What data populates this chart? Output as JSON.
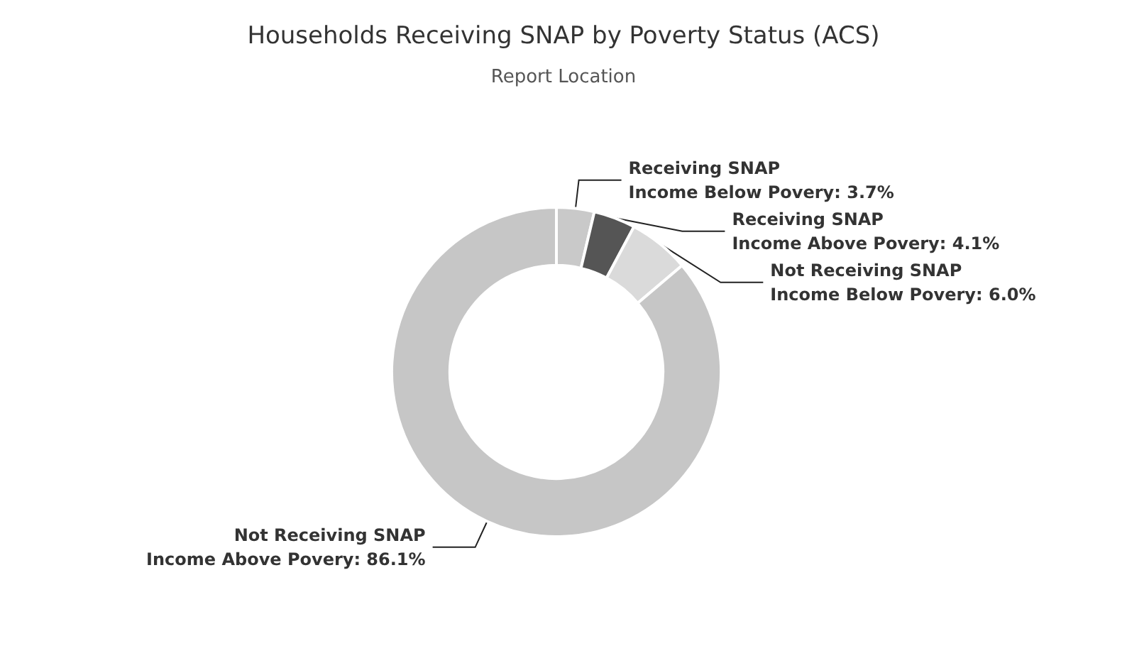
{
  "chart_data": {
    "type": "donut",
    "title": "Households Receiving SNAP by Poverty Status (ACS)",
    "subtitle": "Report Location",
    "categories": [
      "Receiving SNAP\nIncome Below Povery",
      "Receiving SNAP\nIncome Above Povery",
      "Not Receiving SNAP\nIncome Below Povery",
      "Not Receiving SNAP\nIncome Above Povery"
    ],
    "values": [
      3.7,
      4.1,
      6.0,
      86.1
    ],
    "colors": [
      "#c9c9c9",
      "#555555",
      "#dadada",
      "#c6c6c6"
    ],
    "value_labels": [
      ": 3.7%",
      ": 4.1%",
      ": 6.0%",
      ": 86.1%"
    ],
    "legend": false
  }
}
